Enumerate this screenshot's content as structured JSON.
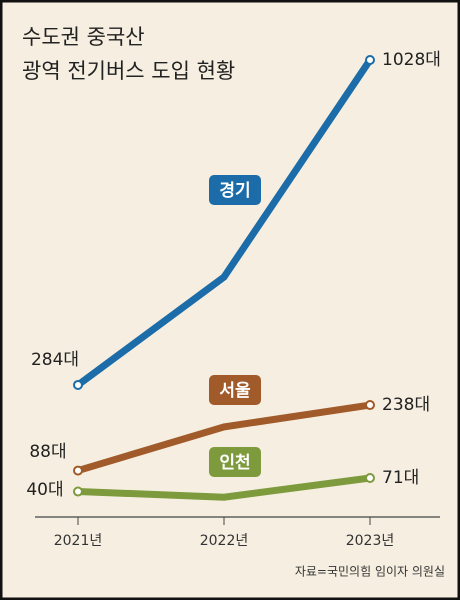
{
  "chart_data": {
    "type": "line",
    "title": [
      "수도권 중국산",
      "광역 전기버스 도입 현황"
    ],
    "categories": [
      "2021년",
      "2022년",
      "2023년"
    ],
    "series": [
      {
        "name": "경기",
        "color": "#1b6ca8",
        "values": [
          284,
          531,
          1028
        ],
        "value_labels": [
          "284대",
          null,
          "1028대"
        ]
      },
      {
        "name": "서울",
        "color": "#a15a2a",
        "values": [
          88,
          188,
          238
        ],
        "value_labels": [
          "88대",
          null,
          "238대"
        ]
      },
      {
        "name": "인천",
        "color": "#7d9a3c",
        "values": [
          40,
          27,
          71
        ],
        "value_labels": [
          "40대",
          null,
          "71대"
        ]
      }
    ],
    "source": "자료=국민의힘 임이자 의원실"
  }
}
